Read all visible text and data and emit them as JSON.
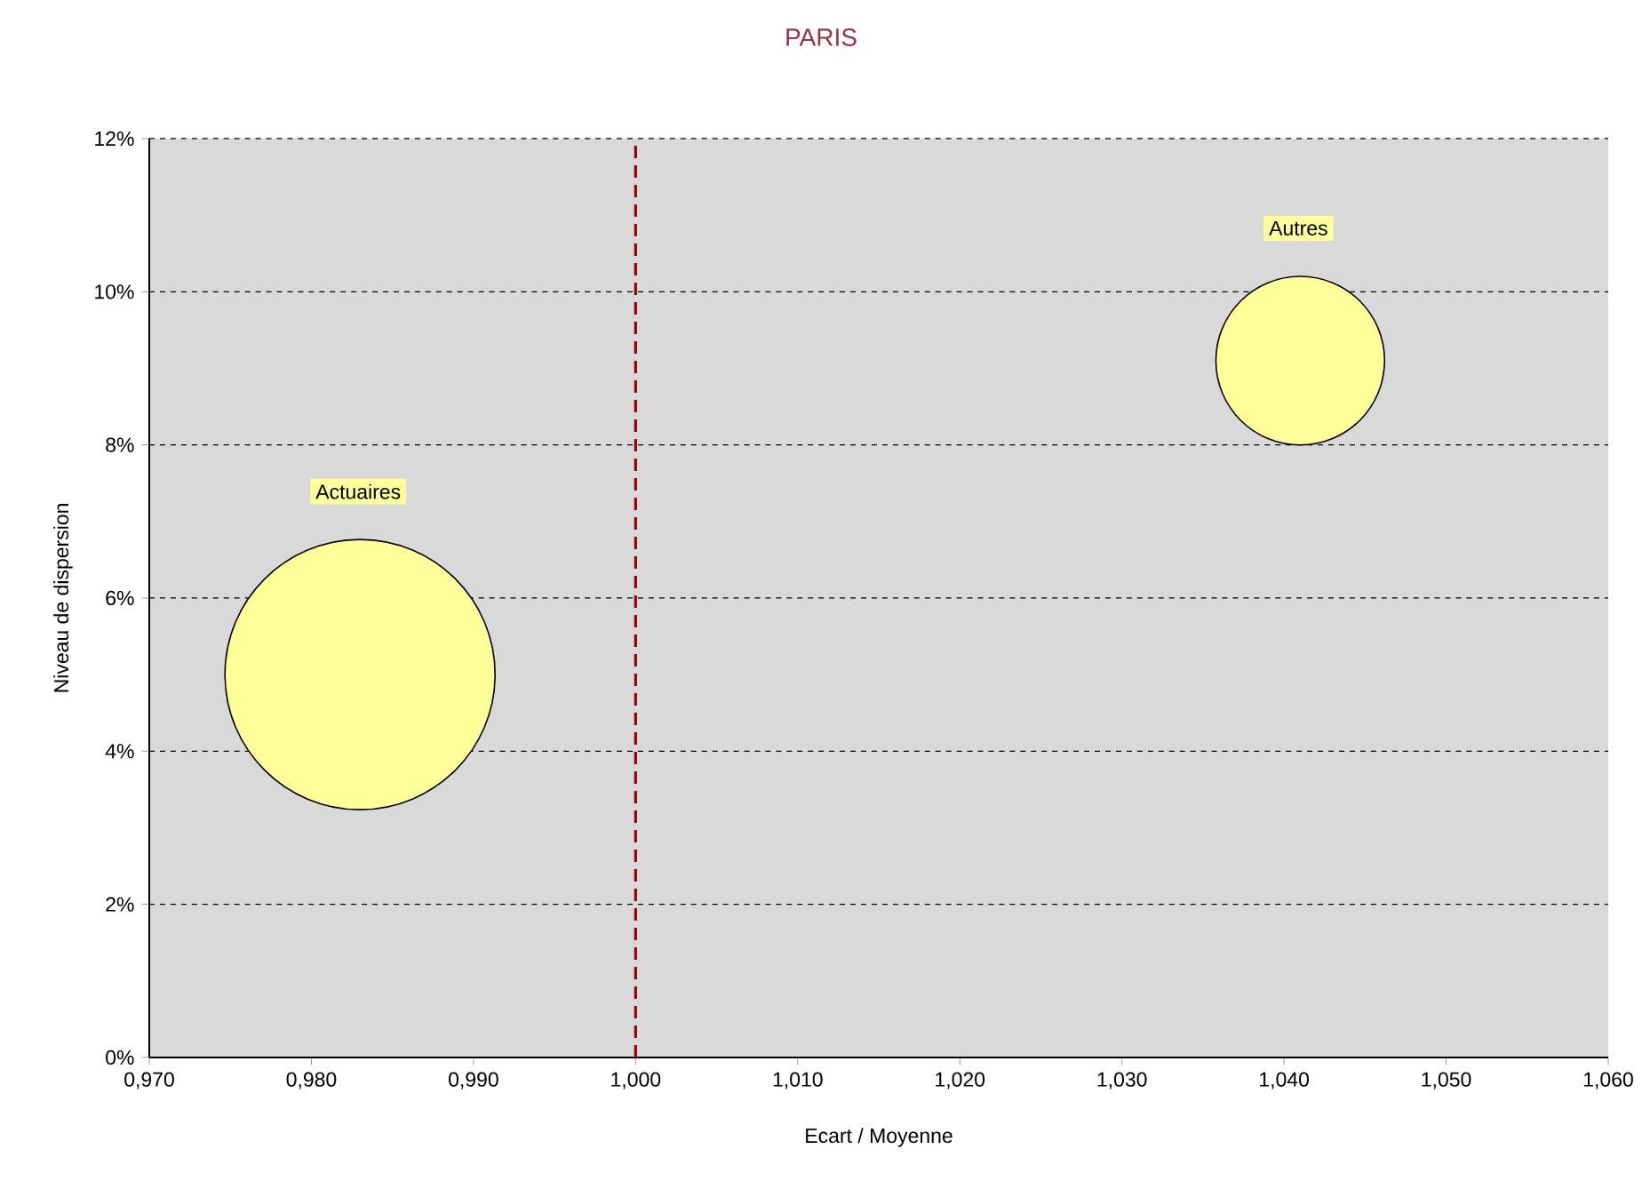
{
  "chart_data": {
    "type": "bubble",
    "title": "PARIS",
    "xlabel": "Ecart / Moyenne",
    "ylabel": "Niveau de dispersion",
    "series": [
      {
        "name": "Actuaires",
        "color": "#ffff99",
        "x": [
          0.983
        ],
        "values": [
          5.0
        ],
        "sizes": [
          1
        ]
      },
      {
        "name": "Autres",
        "color": "#ffff99",
        "x": [
          1.041
        ],
        "values": [
          9.1
        ],
        "sizes": [
          0.39
        ]
      }
    ],
    "xlim": [
      0.97,
      1.06
    ],
    "xticks": [
      {
        "value": 0.97,
        "label": "0,970"
      },
      {
        "value": 0.98,
        "label": "0,980"
      },
      {
        "value": 0.99,
        "label": "0,990"
      },
      {
        "value": 1.0,
        "label": "1,000"
      },
      {
        "value": 1.01,
        "label": "1,010"
      },
      {
        "value": 1.02,
        "label": "1,020"
      },
      {
        "value": 1.03,
        "label": "1,030"
      },
      {
        "value": 1.04,
        "label": "1,040"
      },
      {
        "value": 1.05,
        "label": "1,050"
      },
      {
        "value": 1.06,
        "label": "1,060"
      }
    ],
    "ylim": [
      0,
      12
    ],
    "yticks": [
      {
        "value": 0,
        "label": "0%"
      },
      {
        "value": 2,
        "label": "2%"
      },
      {
        "value": 4,
        "label": "4%"
      },
      {
        "value": 6,
        "label": "6%"
      },
      {
        "value": 8,
        "label": "8%"
      },
      {
        "value": 10,
        "label": "10%"
      },
      {
        "value": 12,
        "label": "12%"
      }
    ],
    "ref_lines": [
      {
        "axis": "x",
        "value": 1.0,
        "color": "#990000",
        "line_style": "dashed"
      }
    ],
    "grid": "y"
  }
}
